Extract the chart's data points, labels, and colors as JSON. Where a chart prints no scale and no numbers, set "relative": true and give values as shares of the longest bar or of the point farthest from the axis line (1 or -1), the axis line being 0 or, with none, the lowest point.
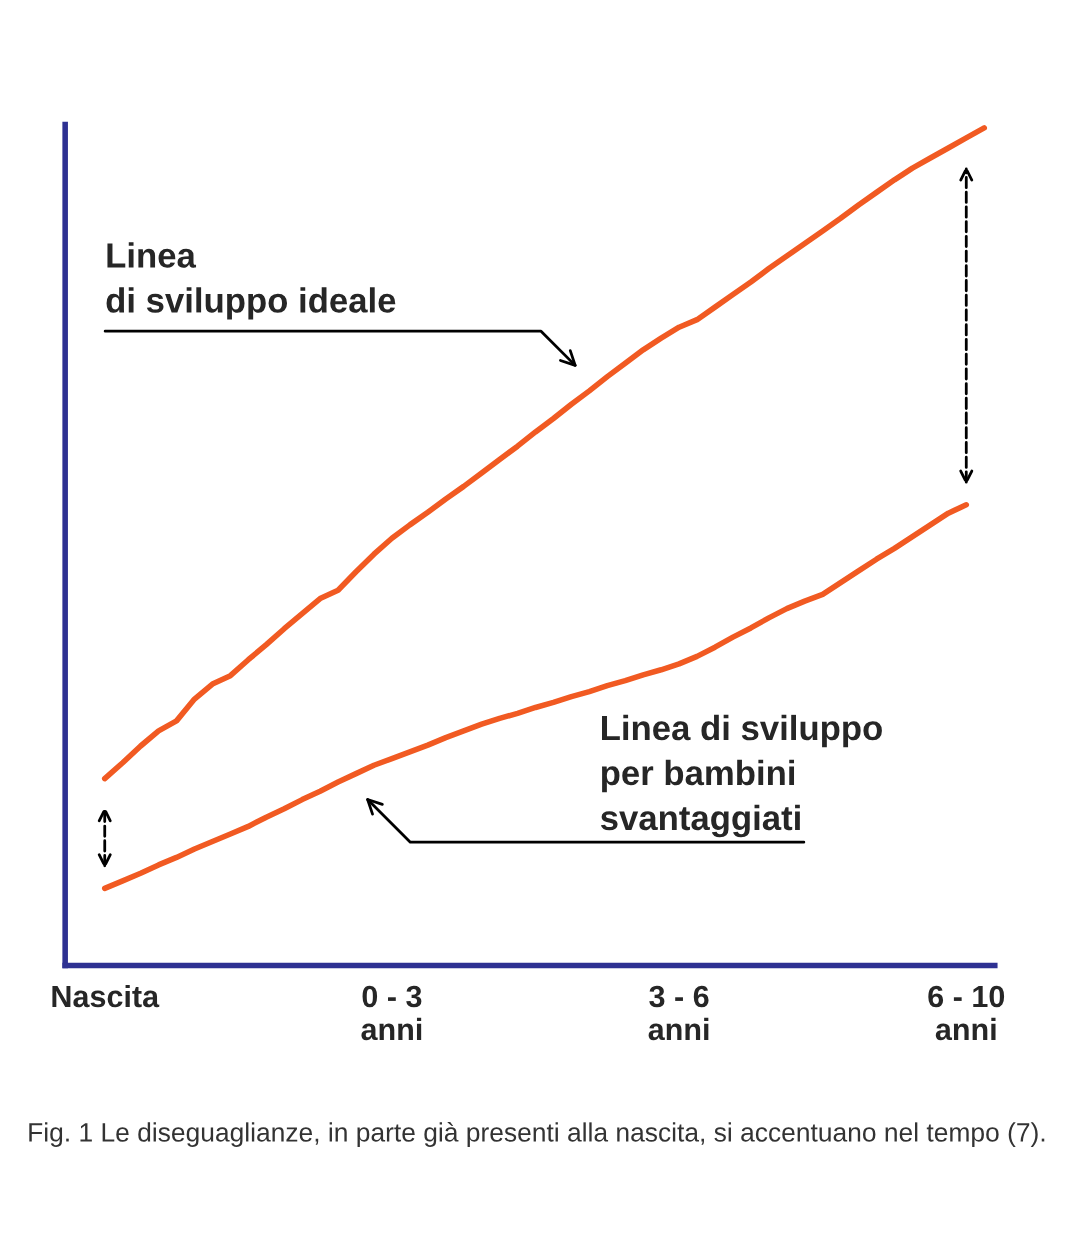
{
  "chart_data": {
    "type": "line",
    "relative": true,
    "categories": [
      "Nascita",
      null,
      null,
      null,
      null,
      null,
      null,
      null,
      null,
      null,
      null,
      null,
      null,
      null,
      null,
      null,
      "0 - 3\nanni",
      null,
      null,
      null,
      null,
      null,
      null,
      null,
      null,
      null,
      null,
      null,
      null,
      null,
      null,
      null,
      "3 - 6\nanni",
      null,
      null,
      null,
      null,
      null,
      null,
      null,
      null,
      null,
      null,
      null,
      null,
      null,
      null,
      null,
      "6 - 10\nanni",
      null
    ],
    "grid": false,
    "legend": false,
    "marker": "none",
    "line_style": "solid",
    "series": [
      {
        "color": "#f15a22",
        "values": [
          0.223,
          0.242,
          0.262,
          0.28,
          0.292,
          0.318,
          0.336,
          0.346,
          0.365,
          0.383,
          0.402,
          0.42,
          0.438,
          0.448,
          0.47,
          0.491,
          0.51,
          0.526,
          0.541,
          0.557,
          0.572,
          0.588,
          0.604,
          0.62,
          0.637,
          0.653,
          0.67,
          0.686,
          0.703,
          0.719,
          0.735,
          0.749,
          0.762,
          0.771,
          0.786,
          0.801,
          0.816,
          0.832,
          0.847,
          0.862,
          0.877,
          0.892,
          0.908,
          0.923,
          0.938,
          0.952,
          0.964,
          0.976,
          0.988,
          1.0
        ]
      },
      {
        "color": "#f15a22",
        "values": [
          0.092,
          0.101,
          0.11,
          0.12,
          0.129,
          0.139,
          0.148,
          0.157,
          0.166,
          0.177,
          0.187,
          0.198,
          0.208,
          0.219,
          0.229,
          0.239,
          0.247,
          0.255,
          0.263,
          0.272,
          0.28,
          0.288,
          0.295,
          0.301,
          0.308,
          0.314,
          0.321,
          0.327,
          0.334,
          0.34,
          0.347,
          0.353,
          0.36,
          0.369,
          0.38,
          0.392,
          0.403,
          0.415,
          0.426,
          0.435,
          0.443,
          0.457,
          0.471,
          0.485,
          0.498,
          0.512,
          0.526,
          0.54,
          0.55,
          null
        ]
      }
    ],
    "annotations": [
      "Linea\ndi sviluppo ideale",
      "Linea di sviluppo\nper bambini\nsvantaggiati",
      "Fig. 1 Le diseguaglianze, in parte già presenti alla nascita, si accentuano nel tempo (7)."
    ]
  }
}
